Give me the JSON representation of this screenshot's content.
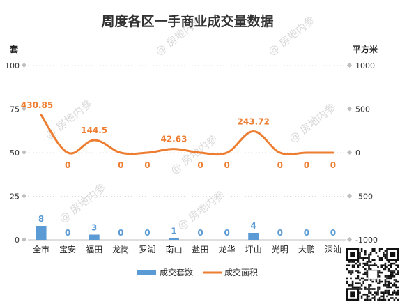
{
  "colors": {
    "bar": "#5b9bd5",
    "line": "#ed7d31",
    "grid": "#d9d9d9",
    "axis": "#bfbfbf"
  },
  "watermark": "@ 房地内参",
  "chart_data": {
    "type": "bar",
    "title": "周度各区一手商业成交量数据",
    "categories": [
      "全市",
      "宝安",
      "福田",
      "龙岗",
      "罗湖",
      "南山",
      "盐田",
      "龙华",
      "坪山",
      "光明",
      "大鹏",
      "深汕"
    ],
    "y_left": {
      "unit": "套",
      "ylim": [
        0,
        100
      ],
      "ticks": [
        "0",
        "25",
        "50",
        "75",
        "100"
      ],
      "tick_values": [
        0,
        25,
        50,
        75,
        100
      ]
    },
    "y_right": {
      "unit": "平方米",
      "ylim": [
        -1000,
        1000
      ],
      "ticks": [
        "-1000",
        "-500",
        "0",
        "500",
        "1000"
      ],
      "tick_values": [
        -1000,
        -500,
        0,
        500,
        1000
      ]
    },
    "series": [
      {
        "name": "成交套数",
        "type": "bar",
        "axis": "left",
        "values": [
          8,
          0,
          3,
          0,
          0,
          1,
          0,
          0,
          4,
          0,
          0,
          0
        ],
        "labels": [
          "8",
          "0",
          "3",
          "0",
          "0",
          "1",
          "0",
          "0",
          "4",
          "0",
          "0",
          "0"
        ]
      },
      {
        "name": "成交面积",
        "type": "line",
        "axis": "right",
        "values": [
          430.85,
          0,
          144.5,
          0,
          0,
          42.63,
          0,
          0,
          243.72,
          0,
          0,
          0
        ],
        "labels": [
          "430.85",
          "0",
          "144.5",
          "0",
          "0",
          "42.63",
          "0",
          "0",
          "243.72",
          "0",
          "0",
          "0"
        ]
      }
    ],
    "legend": "bottom",
    "grid": true
  }
}
